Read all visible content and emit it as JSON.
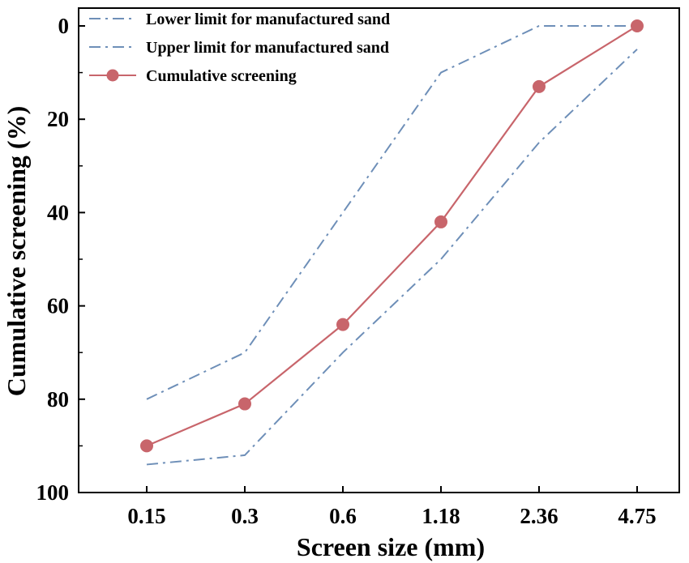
{
  "chart_data": {
    "type": "line",
    "xlabel": "Screen size (mm)",
    "ylabel": "Cumulative screening (%)",
    "categories": [
      "0.15",
      "0.3",
      "0.6",
      "1.18",
      "2.36",
      "4.75"
    ],
    "ylim": [
      100,
      0
    ],
    "y_reversed": true,
    "yticks": [
      0,
      20,
      40,
      60,
      80,
      100
    ],
    "grid": false,
    "legend_position": "top-left",
    "series": [
      {
        "name": "Lower limit for manufactured sand",
        "values": [
          80,
          70,
          40,
          10,
          0,
          0
        ],
        "color": "#6e8fb8",
        "style": "dash-dot",
        "marker": "none"
      },
      {
        "name": "Upper limit for manufactured sand",
        "values": [
          94,
          92,
          70,
          50,
          25,
          5
        ],
        "color": "#6e8fb8",
        "style": "dash-dot",
        "marker": "none"
      },
      {
        "name": "Cumulative screening",
        "values": [
          90,
          81,
          64,
          42,
          13,
          0
        ],
        "color": "#c8656b",
        "style": "solid",
        "marker": "circle"
      }
    ]
  }
}
